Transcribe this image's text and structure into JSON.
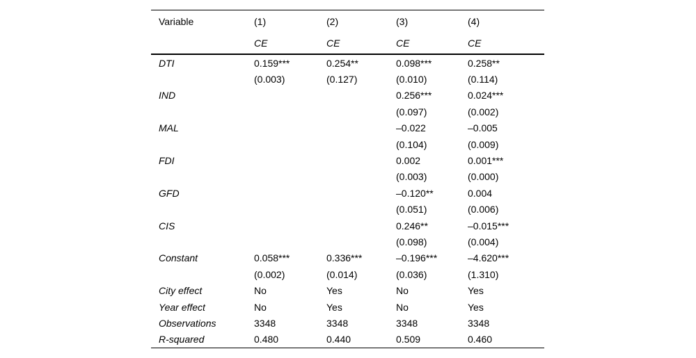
{
  "table": {
    "header": {
      "variable_label": "Variable",
      "model_numbers": [
        "(1)",
        "(2)",
        "(3)",
        "(4)"
      ],
      "dep_vars": [
        "CE",
        "CE",
        "CE",
        "CE"
      ]
    },
    "body_rows": [
      {
        "label": "DTI",
        "cells": [
          "0.159***",
          "0.254**",
          "0.098***",
          "0.258**"
        ]
      },
      {
        "label": "",
        "cells": [
          "(0.003)",
          "(0.127)",
          "(0.010)",
          "(0.114)"
        ]
      },
      {
        "label": "IND",
        "cells": [
          "",
          "",
          "0.256***",
          "0.024***"
        ]
      },
      {
        "label": "",
        "cells": [
          "",
          "",
          "(0.097)",
          "(0.002)"
        ]
      },
      {
        "label": "MAL",
        "cells": [
          "",
          "",
          "–0.022",
          "–0.005"
        ]
      },
      {
        "label": "",
        "cells": [
          "",
          "",
          "(0.104)",
          "(0.009)"
        ]
      },
      {
        "label": "FDI",
        "cells": [
          "",
          "",
          "0.002",
          "0.001***"
        ]
      },
      {
        "label": "",
        "cells": [
          "",
          "",
          "(0.003)",
          "(0.000)"
        ]
      },
      {
        "label": "GFD",
        "cells": [
          "",
          "",
          "–0.120**",
          "0.004"
        ]
      },
      {
        "label": "",
        "cells": [
          "",
          "",
          "(0.051)",
          "(0.006)"
        ]
      },
      {
        "label": "CIS",
        "cells": [
          "",
          "",
          "0.246**",
          "–0.015***"
        ]
      },
      {
        "label": "",
        "cells": [
          "",
          "",
          "(0.098)",
          "(0.004)"
        ]
      },
      {
        "label": "Constant",
        "cells": [
          "0.058***",
          "0.336***",
          "–0.196***",
          "–4.620***"
        ]
      },
      {
        "label": "",
        "cells": [
          "(0.002)",
          "(0.014)",
          "(0.036)",
          "(1.310)"
        ]
      },
      {
        "label": "City effect",
        "cells": [
          "No",
          "Yes",
          "No",
          "Yes"
        ]
      },
      {
        "label": "Year effect",
        "cells": [
          "No",
          "Yes",
          "No",
          "Yes"
        ]
      },
      {
        "label": "Observations",
        "cells": [
          "3348",
          "3348",
          "3348",
          "3348"
        ]
      },
      {
        "label": "R-squared",
        "cells": [
          "0.480",
          "0.440",
          "0.509",
          "0.460"
        ]
      }
    ],
    "colors": {
      "text": "#000000",
      "rule": "#000000",
      "background": "#ffffff"
    }
  }
}
